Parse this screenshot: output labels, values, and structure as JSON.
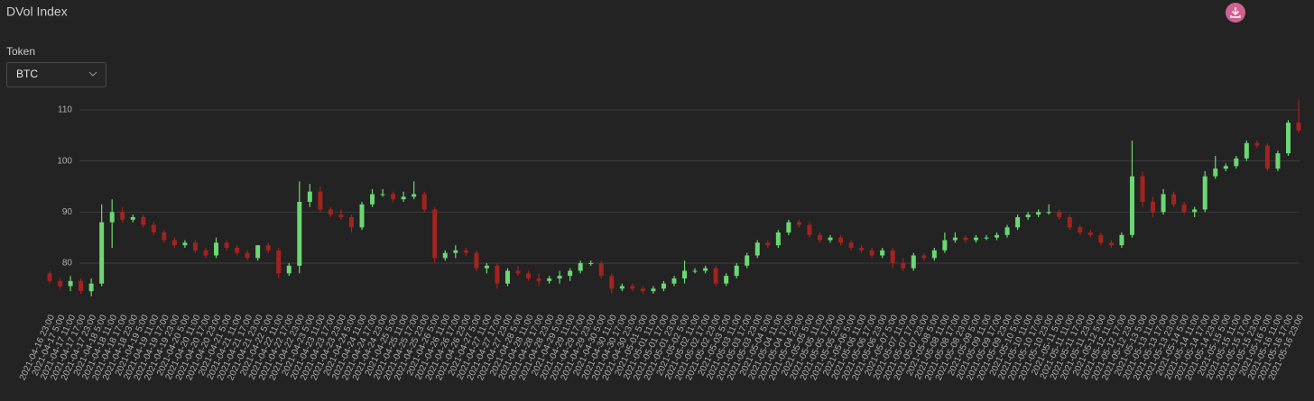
{
  "controls": {
    "token_label": "Token",
    "token_value": "BTC"
  },
  "chart_data": {
    "type": "candlestick",
    "title": "DVol Index",
    "categories": [
      "2021-04-16 23:00",
      "2021-04-17 5:00",
      "2021-04-17 11:00",
      "2021-04-17 17:00",
      "2021-04-17 23:00",
      "2021-04-18 5:00",
      "2021-04-18 11:00",
      "2021-04-18 17:00",
      "2021-04-18 23:00",
      "2021-04-19 5:00",
      "2021-04-19 11:00",
      "2021-04-19 17:00",
      "2021-04-19 23:00",
      "2021-04-20 5:00",
      "2021-04-20 11:00",
      "2021-04-20 17:00",
      "2021-04-20 23:00",
      "2021-04-21 5:00",
      "2021-04-21 11:00",
      "2021-04-21 17:00",
      "2021-04-21 23:00",
      "2021-04-22 5:00",
      "2021-04-22 11:00",
      "2021-04-22 17:00",
      "2021-04-22 23:00",
      "2021-04-23 5:00",
      "2021-04-23 11:00",
      "2021-04-23 17:00",
      "2021-04-23 23:00",
      "2021-04-24 5:00",
      "2021-04-24 11:00",
      "2021-04-24 17:00",
      "2021-04-24 23:00",
      "2021-04-25 5:00",
      "2021-04-25 11:00",
      "2021-04-25 17:00",
      "2021-04-25 23:00",
      "2021-04-26 5:00",
      "2021-04-26 11:00",
      "2021-04-26 17:00",
      "2021-04-26 23:00",
      "2021-04-27 5:00",
      "2021-04-27 11:00",
      "2021-04-27 17:00",
      "2021-04-27 23:00",
      "2021-04-28 5:00",
      "2021-04-28 11:00",
      "2021-04-28 17:00",
      "2021-04-28 23:00",
      "2021-04-29 5:00",
      "2021-04-29 11:00",
      "2021-04-29 17:00",
      "2021-04-29 23:00",
      "2021-04-30 5:00",
      "2021-04-30 11:00",
      "2021-04-30 17:00",
      "2021-04-30 23:00",
      "2021-05-01 5:00",
      "2021-05-01 11:00",
      "2021-05-01 17:00",
      "2021-05-01 23:00",
      "2021-05-02 5:00",
      "2021-05-02 11:00",
      "2021-05-02 17:00",
      "2021-05-02 23:00",
      "2021-05-03 5:00",
      "2021-05-03 11:00",
      "2021-05-03 17:00",
      "2021-05-03 23:00",
      "2021-05-04 5:00",
      "2021-05-04 11:00",
      "2021-05-04 17:00",
      "2021-05-04 23:00",
      "2021-05-05 5:00",
      "2021-05-05 11:00",
      "2021-05-05 17:00",
      "2021-05-05 23:00",
      "2021-05-06 5:00",
      "2021-05-06 11:00",
      "2021-05-06 17:00",
      "2021-05-06 23:00",
      "2021-05-07 5:00",
      "2021-05-07 11:00",
      "2021-05-07 17:00",
      "2021-05-07 23:00",
      "2021-05-08 5:00",
      "2021-05-08 11:00",
      "2021-05-08 17:00",
      "2021-05-08 23:00",
      "2021-05-09 5:00",
      "2021-05-09 11:00",
      "2021-05-09 17:00",
      "2021-05-09 23:00",
      "2021-05-10 5:00",
      "2021-05-10 11:00",
      "2021-05-10 17:00",
      "2021-05-10 23:00",
      "2021-05-11 5:00",
      "2021-05-11 11:00",
      "2021-05-11 17:00",
      "2021-05-11 23:00",
      "2021-05-12 5:00",
      "2021-05-12 11:00",
      "2021-05-12 17:00",
      "2021-05-12 23:00",
      "2021-05-13 5:00",
      "2021-05-13 11:00",
      "2021-05-13 17:00",
      "2021-05-13 23:00",
      "2021-05-14 5:00",
      "2021-05-14 11:00",
      "2021-05-14 17:00",
      "2021-05-14 23:00",
      "2021-05-15 5:00",
      "2021-05-15 11:00",
      "2021-05-15 17:00",
      "2021-05-15 23:00",
      "2021-05-16 5:00",
      "2021-05-16 11:00",
      "2021-05-16 17:00",
      "2021-05-16 23:00"
    ],
    "open": [
      78,
      76.5,
      75.5,
      76.5,
      74.5,
      76,
      88,
      90,
      88.5,
      89,
      87.5,
      86,
      84.5,
      83.5,
      84,
      82.5,
      81.5,
      84,
      83,
      82,
      81,
      83.5,
      82.5,
      78,
      79.5,
      92,
      94,
      90.5,
      89.5,
      89,
      87,
      91.5,
      93.5,
      93.5,
      92.5,
      93,
      93.5,
      90.5,
      81,
      82,
      82.5,
      82,
      79,
      79.5,
      76,
      78.5,
      78,
      77,
      76.5,
      77,
      77.5,
      78.5,
      80,
      80,
      77.5,
      75,
      75.5,
      75,
      74.5,
      75,
      76,
      77,
      78.5,
      78.5,
      79,
      76,
      77.5,
      79.5,
      81.5,
      84,
      83.5,
      86,
      88,
      87.5,
      85.5,
      84.5,
      85,
      84,
      83,
      82.5,
      81.5,
      82.5,
      80,
      79,
      81.5,
      81,
      82.5,
      84.5,
      85,
      84.5,
      85,
      85,
      85.5,
      87,
      89,
      89.5,
      90,
      90,
      89,
      87,
      86,
      85.5,
      84,
      83.5,
      85.5,
      97,
      92,
      90,
      93.5,
      91.5,
      90,
      90.5,
      97,
      98.5,
      99,
      100.5,
      103.5,
      103,
      98.5,
      101.5,
      107.5
    ],
    "high": [
      78.5,
      77,
      77.5,
      77,
      77,
      91.5,
      92.5,
      91,
      89.5,
      89.5,
      88,
      86.5,
      85,
      84.5,
      84.5,
      83,
      85,
      84.5,
      83.5,
      82.5,
      83.5,
      84,
      83,
      80,
      96,
      95.5,
      95,
      91,
      90.5,
      89.5,
      92,
      94.5,
      94.5,
      94,
      94,
      96,
      94,
      91,
      82.5,
      83.5,
      83,
      82.5,
      80,
      80,
      79,
      79.5,
      78.5,
      78,
      77.5,
      78.5,
      79,
      80.5,
      80.5,
      80.5,
      78,
      76,
      76,
      75.5,
      75.5,
      76.5,
      77.5,
      80.5,
      79,
      79.5,
      79.5,
      78,
      80,
      82,
      84.5,
      84.5,
      86.5,
      88.5,
      88.5,
      88,
      86,
      85.5,
      85.5,
      84.5,
      83.5,
      83,
      83,
      83,
      81,
      82,
      82,
      83,
      86,
      86,
      85.5,
      85.5,
      85.5,
      86,
      87.5,
      89.5,
      90,
      90.5,
      91.5,
      90.5,
      89.5,
      87.5,
      86.5,
      86,
      84.5,
      86,
      104,
      98,
      93,
      94.5,
      94,
      92,
      91,
      98,
      101,
      99.5,
      101,
      104,
      104,
      103.5,
      102,
      108,
      112
    ],
    "low": [
      76,
      75,
      74.5,
      74,
      73.5,
      75.5,
      83,
      88,
      88,
      87,
      85.5,
      84,
      83,
      83,
      82,
      81,
      81,
      82.5,
      81.5,
      80.5,
      80.5,
      82,
      77,
      77.5,
      78,
      91,
      90,
      89,
      88.5,
      86,
      86.5,
      91,
      93,
      92,
      92,
      92.5,
      90,
      80,
      80.5,
      81,
      81.5,
      78.5,
      78,
      75,
      75.5,
      77.5,
      76.5,
      75.5,
      76,
      76,
      76.5,
      78,
      79.5,
      77,
      74,
      74.5,
      74.5,
      74,
      74,
      74.5,
      75.5,
      76,
      78,
      78,
      75.5,
      75.5,
      77,
      79,
      81,
      83,
      83,
      85.5,
      87,
      85,
      84,
      84,
      83.5,
      82.5,
      82,
      81,
      81,
      79,
      78.5,
      78.5,
      80.5,
      80.5,
      82,
      84,
      84,
      84,
      84.5,
      84.5,
      85,
      86.5,
      88.5,
      89,
      89.5,
      88.5,
      86.5,
      85.5,
      85,
      83.5,
      83,
      83,
      85,
      91,
      89,
      89.5,
      91,
      89.5,
      89,
      90,
      96.5,
      98,
      98.5,
      100,
      102.5,
      98,
      98,
      101,
      105.5
    ],
    "close": [
      76.5,
      75.5,
      76.5,
      74.5,
      76,
      88,
      90,
      88.5,
      89,
      87.5,
      86,
      84.5,
      83.5,
      84,
      82.5,
      81.5,
      84,
      83,
      82,
      81,
      83.5,
      82.5,
      78,
      79.5,
      92,
      94,
      90.5,
      89.5,
      89,
      87,
      91.5,
      93.5,
      93.5,
      92.5,
      93,
      93.5,
      90.5,
      81,
      82,
      82.5,
      82,
      79,
      79.5,
      76,
      78.5,
      78,
      77,
      76.5,
      77,
      77.5,
      78.5,
      80,
      80,
      77.5,
      75,
      75.5,
      75,
      74.5,
      75,
      76,
      77,
      78.5,
      78.5,
      79,
      76,
      77.5,
      79.5,
      81.5,
      84,
      83.5,
      86,
      88,
      87.5,
      85.5,
      84.5,
      85,
      84,
      83,
      82.5,
      81.5,
      82.5,
      80,
      79,
      81.5,
      81,
      82.5,
      84.5,
      85,
      84.5,
      85,
      85,
      85.5,
      87,
      89,
      89.5,
      90,
      90,
      89,
      87,
      86,
      85.5,
      84,
      83.5,
      85.5,
      97,
      92,
      90,
      93.5,
      91.5,
      90,
      90.5,
      97,
      98.5,
      99,
      100.5,
      103.5,
      103,
      98.5,
      101.5,
      107.5,
      106
    ],
    "up_color": "#6bd873",
    "down_color": "#a3231f",
    "ylim": [
      72.5,
      112.5
    ],
    "yticks": [
      80,
      90,
      100,
      110
    ],
    "grid": true
  }
}
